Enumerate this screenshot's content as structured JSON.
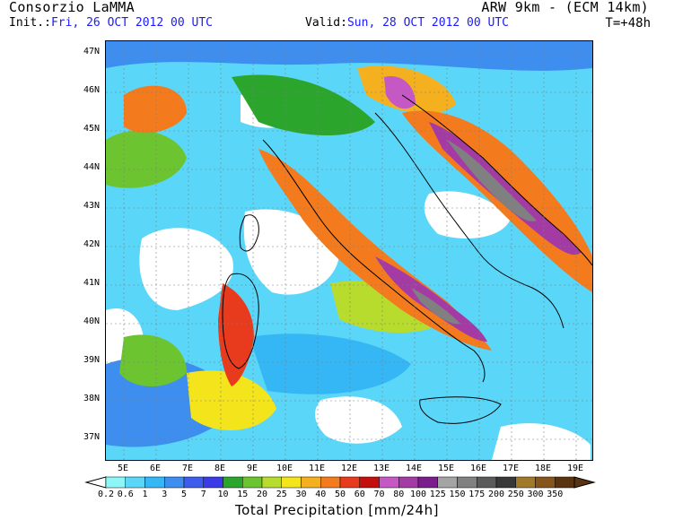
{
  "header": {
    "org": "Consorzio LaMMA",
    "model": "ARW 9km - (ECM 14km)",
    "init_label": "Init.:",
    "init_value": "Fri, 26 OCT 2012  00 UTC",
    "valid_label": "Valid:",
    "valid_value": "Sun, 28 OCT 2012  00 UTC",
    "forecast_time": "T=+48h"
  },
  "map": {
    "lat_labels": [
      "47N",
      "46N",
      "45N",
      "44N",
      "43N",
      "42N",
      "41N",
      "40N",
      "39N",
      "38N",
      "37N"
    ],
    "lon_labels": [
      "5E",
      "6E",
      "7E",
      "8E",
      "9E",
      "10E",
      "11E",
      "12E",
      "13E",
      "14E",
      "15E",
      "16E",
      "17E",
      "18E",
      "19E"
    ],
    "colors": {
      "background": "#ffffff",
      "frame": "#000000",
      "coast": "#000000",
      "grid": "#7f7f7f"
    }
  },
  "colorbar": {
    "title": "Total Precipitation [mm/24h]",
    "labels": [
      "0.2",
      "0.6",
      "1",
      "3",
      "5",
      "7",
      "10",
      "15",
      "20",
      "25",
      "30",
      "40",
      "50",
      "60",
      "70",
      "80",
      "100",
      "125",
      "150",
      "175",
      "200",
      "250",
      "300",
      "350"
    ],
    "colors": [
      "#8ef6f6",
      "#5ad7f8",
      "#34b7f4",
      "#3d8eef",
      "#3f5ded",
      "#3a3ae6",
      "#2ba52b",
      "#6cc431",
      "#b8dc2e",
      "#f4e41c",
      "#f4b01e",
      "#f47a1e",
      "#e83a1c",
      "#c40f0f",
      "#c658c6",
      "#a43aa4",
      "#7a1e8c",
      "#a4a4a4",
      "#808080",
      "#5a5a5a",
      "#383838",
      "#a07a2a",
      "#86551e",
      "#5a3410"
    ]
  }
}
